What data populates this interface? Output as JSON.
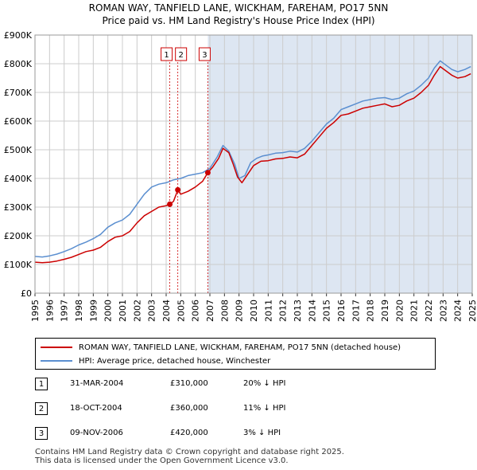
{
  "title_line1": "ROMAN WAY, TANFIELD LANE, WICKHAM, FAREHAM, PO17 5NN",
  "title_line2": "Price paid vs. HM Land Registry's House Price Index (HPI)",
  "colors": {
    "price_line": "#cc0000",
    "hpi_line": "#5b8fd0",
    "future_band": "#dde6f2",
    "grid": "#cccccc",
    "marker": "#cc0000"
  },
  "chart_data": {
    "type": "line",
    "xlim": [
      1995,
      2025
    ],
    "ylim": [
      0,
      900000
    ],
    "x_ticks": [
      1995,
      1996,
      1997,
      1998,
      1999,
      2000,
      2001,
      2002,
      2003,
      2004,
      2005,
      2006,
      2007,
      2008,
      2009,
      2010,
      2011,
      2012,
      2013,
      2014,
      2015,
      2016,
      2017,
      2018,
      2019,
      2020,
      2021,
      2022,
      2023,
      2024,
      2025
    ],
    "y_ticks": [
      {
        "value": 0,
        "label": "£0"
      },
      {
        "value": 100000,
        "label": "£100K"
      },
      {
        "value": 200000,
        "label": "£200K"
      },
      {
        "value": 300000,
        "label": "£300K"
      },
      {
        "value": 400000,
        "label": "£400K"
      },
      {
        "value": 500000,
        "label": "£500K"
      },
      {
        "value": 600000,
        "label": "£600K"
      },
      {
        "value": 700000,
        "label": "£700K"
      },
      {
        "value": 800000,
        "label": "£800K"
      },
      {
        "value": 900000,
        "label": "£900K"
      }
    ],
    "shaded_from": 2006.86,
    "series": [
      {
        "name": "ROMAN WAY, TANFIELD LANE, WICKHAM, FAREHAM, PO17 5NN (detached house)",
        "color": "#cc0000",
        "points": [
          [
            1995.0,
            108000
          ],
          [
            1995.5,
            106000
          ],
          [
            1996.0,
            108000
          ],
          [
            1996.5,
            112000
          ],
          [
            1997.0,
            118000
          ],
          [
            1997.5,
            125000
          ],
          [
            1998.0,
            135000
          ],
          [
            1998.5,
            145000
          ],
          [
            1999.0,
            150000
          ],
          [
            1999.5,
            160000
          ],
          [
            2000.0,
            180000
          ],
          [
            2000.5,
            195000
          ],
          [
            2001.0,
            200000
          ],
          [
            2001.5,
            215000
          ],
          [
            2002.0,
            245000
          ],
          [
            2002.5,
            270000
          ],
          [
            2003.0,
            285000
          ],
          [
            2003.5,
            300000
          ],
          [
            2004.0,
            305000
          ],
          [
            2004.25,
            310000
          ],
          [
            2004.5,
            320000
          ],
          [
            2004.8,
            360000
          ],
          [
            2005.0,
            345000
          ],
          [
            2005.5,
            355000
          ],
          [
            2006.0,
            370000
          ],
          [
            2006.5,
            390000
          ],
          [
            2006.86,
            420000
          ],
          [
            2007.2,
            440000
          ],
          [
            2007.6,
            470000
          ],
          [
            2007.9,
            505000
          ],
          [
            2008.3,
            490000
          ],
          [
            2008.6,
            450000
          ],
          [
            2008.9,
            405000
          ],
          [
            2009.2,
            385000
          ],
          [
            2009.6,
            415000
          ],
          [
            2010.0,
            445000
          ],
          [
            2010.5,
            460000
          ],
          [
            2011.0,
            462000
          ],
          [
            2011.5,
            468000
          ],
          [
            2012.0,
            470000
          ],
          [
            2012.5,
            475000
          ],
          [
            2013.0,
            472000
          ],
          [
            2013.5,
            485000
          ],
          [
            2014.0,
            515000
          ],
          [
            2014.5,
            545000
          ],
          [
            2015.0,
            575000
          ],
          [
            2015.5,
            595000
          ],
          [
            2016.0,
            620000
          ],
          [
            2016.5,
            625000
          ],
          [
            2017.0,
            635000
          ],
          [
            2017.5,
            645000
          ],
          [
            2018.0,
            650000
          ],
          [
            2018.5,
            655000
          ],
          [
            2019.0,
            660000
          ],
          [
            2019.5,
            650000
          ],
          [
            2020.0,
            655000
          ],
          [
            2020.5,
            670000
          ],
          [
            2021.0,
            680000
          ],
          [
            2021.5,
            700000
          ],
          [
            2022.0,
            725000
          ],
          [
            2022.4,
            760000
          ],
          [
            2022.8,
            790000
          ],
          [
            2023.2,
            775000
          ],
          [
            2023.6,
            760000
          ],
          [
            2024.0,
            750000
          ],
          [
            2024.5,
            755000
          ],
          [
            2024.9,
            765000
          ]
        ]
      },
      {
        "name": "HPI: Average price, detached house, Winchester",
        "color": "#5b8fd0",
        "points": [
          [
            1995.0,
            128000
          ],
          [
            1995.5,
            126000
          ],
          [
            1996.0,
            130000
          ],
          [
            1996.5,
            136000
          ],
          [
            1997.0,
            145000
          ],
          [
            1997.5,
            155000
          ],
          [
            1998.0,
            168000
          ],
          [
            1998.5,
            178000
          ],
          [
            1999.0,
            190000
          ],
          [
            1999.5,
            205000
          ],
          [
            2000.0,
            230000
          ],
          [
            2000.5,
            245000
          ],
          [
            2001.0,
            255000
          ],
          [
            2001.5,
            275000
          ],
          [
            2002.0,
            310000
          ],
          [
            2002.5,
            345000
          ],
          [
            2003.0,
            370000
          ],
          [
            2003.5,
            380000
          ],
          [
            2004.0,
            385000
          ],
          [
            2004.5,
            395000
          ],
          [
            2005.0,
            400000
          ],
          [
            2005.5,
            410000
          ],
          [
            2006.0,
            415000
          ],
          [
            2006.5,
            420000
          ],
          [
            2007.0,
            435000
          ],
          [
            2007.5,
            475000
          ],
          [
            2007.9,
            515000
          ],
          [
            2008.3,
            495000
          ],
          [
            2008.7,
            450000
          ],
          [
            2009.0,
            400000
          ],
          [
            2009.4,
            410000
          ],
          [
            2009.8,
            455000
          ],
          [
            2010.2,
            470000
          ],
          [
            2010.6,
            478000
          ],
          [
            2011.0,
            482000
          ],
          [
            2011.5,
            488000
          ],
          [
            2012.0,
            490000
          ],
          [
            2012.5,
            495000
          ],
          [
            2013.0,
            492000
          ],
          [
            2013.5,
            505000
          ],
          [
            2014.0,
            530000
          ],
          [
            2014.5,
            560000
          ],
          [
            2015.0,
            590000
          ],
          [
            2015.5,
            610000
          ],
          [
            2016.0,
            640000
          ],
          [
            2016.5,
            650000
          ],
          [
            2017.0,
            660000
          ],
          [
            2017.5,
            670000
          ],
          [
            2018.0,
            675000
          ],
          [
            2018.5,
            680000
          ],
          [
            2019.0,
            682000
          ],
          [
            2019.5,
            675000
          ],
          [
            2020.0,
            680000
          ],
          [
            2020.5,
            695000
          ],
          [
            2021.0,
            705000
          ],
          [
            2021.5,
            725000
          ],
          [
            2022.0,
            750000
          ],
          [
            2022.4,
            785000
          ],
          [
            2022.8,
            810000
          ],
          [
            2023.2,
            795000
          ],
          [
            2023.6,
            780000
          ],
          [
            2024.0,
            772000
          ],
          [
            2024.5,
            780000
          ],
          [
            2024.9,
            790000
          ]
        ]
      }
    ],
    "markers": [
      {
        "id": "1",
        "x": 2004.25,
        "y": 310000
      },
      {
        "id": "2",
        "x": 2004.8,
        "y": 360000
      },
      {
        "id": "3",
        "x": 2006.86,
        "y": 420000
      }
    ]
  },
  "legend": {
    "price_label": "ROMAN WAY, TANFIELD LANE, WICKHAM, FAREHAM, PO17 5NN (detached house)",
    "hpi_label": "HPI: Average price, detached house, Winchester"
  },
  "transactions": [
    {
      "num": "1",
      "date": "31-MAR-2004",
      "price": "£310,000",
      "hpi": "20% ↓ HPI"
    },
    {
      "num": "2",
      "date": "18-OCT-2004",
      "price": "£360,000",
      "hpi": "11% ↓ HPI"
    },
    {
      "num": "3",
      "date": "09-NOV-2006",
      "price": "£420,000",
      "hpi": "3% ↓ HPI"
    }
  ],
  "footer_line1": "Contains HM Land Registry data © Crown copyright and database right 2025.",
  "footer_line2": "This data is licensed under the Open Government Licence v3.0."
}
